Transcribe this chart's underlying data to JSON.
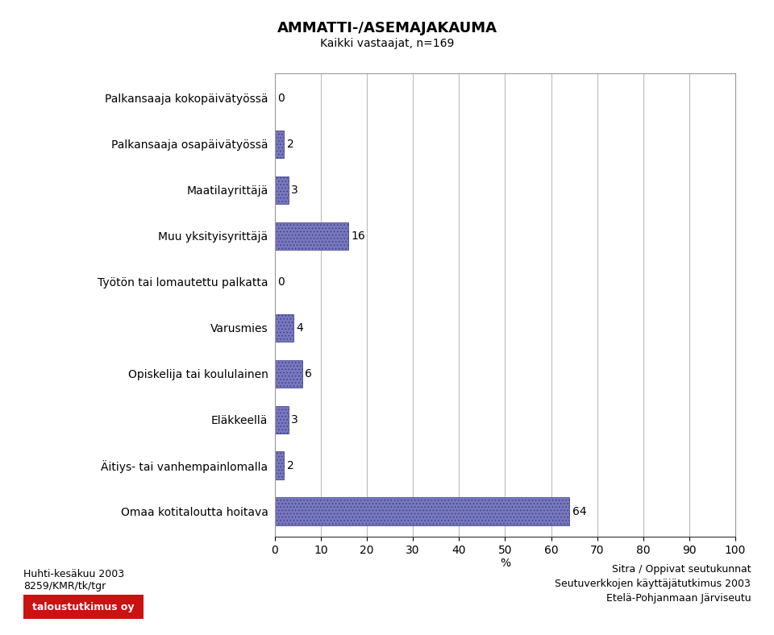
{
  "title": "AMMATTI-/ASEMAJAKAUMA",
  "subtitle": "Kaikki vastaajat, n=169",
  "categories": [
    "Palkansaaja kokopäivätyössä",
    "Palkansaaja osapäivätyössä",
    "Maatilayrittäjä",
    "Muu yksityisyrittäjä",
    "Työtön tai lomautettu palkatta",
    "Varusmies",
    "Opiskelija tai koululainen",
    "Eläkkeellä",
    "Äitiys- tai vanhempainlomalla",
    "Omaa kotitaloutta hoitava"
  ],
  "values": [
    64,
    2,
    3,
    6,
    4,
    0,
    16,
    3,
    2,
    0
  ],
  "bar_color": "#7777bb",
  "bar_hatch": "....",
  "hatch_color": "#333388",
  "xlim": [
    0,
    100
  ],
  "xticks": [
    0,
    10,
    20,
    30,
    40,
    50,
    60,
    70,
    80,
    90,
    100
  ],
  "xlabel": "%",
  "footer_left_line1": "Huhti-kesäkuu 2003",
  "footer_left_line2": "8259/KMR/tk/tgr",
  "footer_right_line1": "Sitra / Oppivat seutukunnat",
  "footer_right_line2": "Seutuverkkojen käyttäjätutkimus 2003",
  "footer_right_line3": "Etelä-Pohjanmaan Järviseutu",
  "logo_text": "taloustutkimus oy",
  "logo_bg": "#cc1111",
  "logo_fg": "#ffffff",
  "title_fontsize": 13,
  "subtitle_fontsize": 10,
  "label_fontsize": 10,
  "value_fontsize": 10,
  "footer_fontsize": 9,
  "background_color": "#ffffff",
  "grid_color": "#bbbbbb"
}
